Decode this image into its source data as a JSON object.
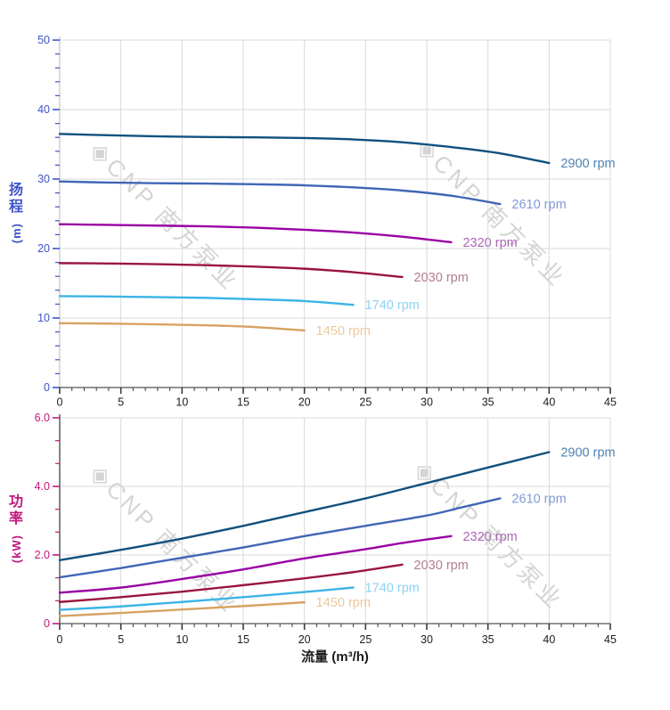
{
  "watermark": {
    "logo": "◈",
    "text": "CNP 南方泵业",
    "color": "#d4d4d4"
  },
  "x_axis_title": "流量 (m³/h)",
  "chart_data": [
    {
      "type": "line",
      "title": "",
      "ylabel": "扬程",
      "y_unit": "(m)",
      "xlabel": "流量 (m³/h)",
      "legend_position": "end-of-curve",
      "grid": true,
      "x_axis": {
        "min": 0,
        "max": 45,
        "major": 5,
        "minor_per_major": 5,
        "tick_labels": [
          "0",
          "5",
          "10",
          "15",
          "20",
          "25",
          "30",
          "35",
          "40",
          "45"
        ],
        "color": "#1b1b1b"
      },
      "y_axis": {
        "min": 0,
        "max": 50,
        "major": 10,
        "minor_per_major": 5,
        "tick_labels": [
          "0",
          "10",
          "20",
          "30",
          "40",
          "50"
        ],
        "color": "#3f53c9"
      },
      "series": [
        {
          "name": "2900 rpm",
          "color": "#10507d",
          "label_color": "#4e81b3",
          "points": [
            [
              0,
              36.5
            ],
            [
              4,
              36.3
            ],
            [
              8,
              36.15
            ],
            [
              12,
              36.05
            ],
            [
              16,
              36.0
            ],
            [
              20,
              35.9
            ],
            [
              24,
              35.7
            ],
            [
              28,
              35.3
            ],
            [
              32,
              34.6
            ],
            [
              36,
              33.7
            ],
            [
              40,
              32.3
            ]
          ]
        },
        {
          "name": "2610 rpm",
          "color": "#4166b5",
          "label_color": "#8099d6",
          "points": [
            [
              0,
              29.65
            ],
            [
              4,
              29.5
            ],
            [
              8,
              29.4
            ],
            [
              12,
              29.35
            ],
            [
              16,
              29.25
            ],
            [
              20,
              29.1
            ],
            [
              24,
              28.8
            ],
            [
              28,
              28.35
            ],
            [
              32,
              27.6
            ],
            [
              36,
              26.4
            ]
          ]
        },
        {
          "name": "2320 rpm",
          "color": "#9a00a5",
          "label_color": "#ab68b5",
          "points": [
            [
              0,
              23.5
            ],
            [
              4,
              23.4
            ],
            [
              8,
              23.3
            ],
            [
              12,
              23.2
            ],
            [
              16,
              23.0
            ],
            [
              20,
              22.7
            ],
            [
              24,
              22.3
            ],
            [
              28,
              21.7
            ],
            [
              32,
              20.9
            ]
          ]
        },
        {
          "name": "2030 rpm",
          "color": "#991441",
          "label_color": "#b27b93",
          "points": [
            [
              0,
              17.9
            ],
            [
              4,
              17.85
            ],
            [
              8,
              17.75
            ],
            [
              12,
              17.6
            ],
            [
              16,
              17.4
            ],
            [
              20,
              17.1
            ],
            [
              24,
              16.6
            ],
            [
              28,
              15.9
            ]
          ]
        },
        {
          "name": "1740 rpm",
          "color": "#3cb4e5",
          "label_color": "#8ed2f4",
          "points": [
            [
              0,
              13.15
            ],
            [
              4,
              13.1
            ],
            [
              8,
              13.0
            ],
            [
              12,
              12.9
            ],
            [
              16,
              12.7
            ],
            [
              20,
              12.45
            ],
            [
              24,
              11.9
            ]
          ]
        },
        {
          "name": "1450 rpm",
          "color": "#d7a262",
          "label_color": "#ebc89c",
          "points": [
            [
              0,
              9.25
            ],
            [
              4,
              9.2
            ],
            [
              8,
              9.1
            ],
            [
              12,
              8.95
            ],
            [
              16,
              8.7
            ],
            [
              20,
              8.2
            ]
          ]
        }
      ]
    },
    {
      "type": "line",
      "title": "",
      "ylabel": "功率",
      "y_unit": "(kW)",
      "xlabel": "流量 (m³/h)",
      "legend_position": "end-of-curve",
      "grid": true,
      "x_axis": {
        "min": 0,
        "max": 45,
        "major": 5,
        "minor_per_major": 5,
        "tick_labels": [
          "0",
          "5",
          "10",
          "15",
          "20",
          "25",
          "30",
          "35",
          "40",
          "45"
        ],
        "color": "#1b1b1b"
      },
      "y_axis": {
        "min": 0,
        "max": 6,
        "major": 2,
        "minor_per_major": 3,
        "tick_labels": [
          "0",
          "2.0",
          "4.0",
          "6.0"
        ],
        "color": "#c2187e"
      },
      "series": [
        {
          "name": "2900 rpm",
          "color": "#10507d",
          "label_color": "#4e81b3",
          "points": [
            [
              0,
              1.85
            ],
            [
              5,
              2.15
            ],
            [
              10,
              2.48
            ],
            [
              15,
              2.85
            ],
            [
              20,
              3.25
            ],
            [
              25,
              3.65
            ],
            [
              30,
              4.1
            ],
            [
              35,
              4.55
            ],
            [
              40,
              5.0
            ]
          ]
        },
        {
          "name": "2610 rpm",
          "color": "#4166b5",
          "label_color": "#8099d6",
          "points": [
            [
              0,
              1.35
            ],
            [
              5,
              1.62
            ],
            [
              10,
              1.92
            ],
            [
              15,
              2.22
            ],
            [
              20,
              2.55
            ],
            [
              25,
              2.85
            ],
            [
              30,
              3.15
            ],
            [
              33,
              3.4
            ],
            [
              36,
              3.65
            ]
          ]
        },
        {
          "name": "2320 rpm",
          "color": "#9a00a5",
          "label_color": "#ab68b5",
          "points": [
            [
              0,
              0.9
            ],
            [
              5,
              1.05
            ],
            [
              10,
              1.3
            ],
            [
              15,
              1.58
            ],
            [
              20,
              1.9
            ],
            [
              25,
              2.17
            ],
            [
              28,
              2.35
            ],
            [
              32,
              2.55
            ]
          ]
        },
        {
          "name": "2030 rpm",
          "color": "#991441",
          "label_color": "#b27b93",
          "points": [
            [
              0,
              0.63
            ],
            [
              5,
              0.77
            ],
            [
              10,
              0.93
            ],
            [
              15,
              1.12
            ],
            [
              20,
              1.32
            ],
            [
              24,
              1.5
            ],
            [
              28,
              1.72
            ]
          ]
        },
        {
          "name": "1740 rpm",
          "color": "#3cb4e5",
          "label_color": "#8ed2f4",
          "points": [
            [
              0,
              0.4
            ],
            [
              5,
              0.5
            ],
            [
              10,
              0.63
            ],
            [
              15,
              0.77
            ],
            [
              20,
              0.92
            ],
            [
              24,
              1.05
            ]
          ]
        },
        {
          "name": "1450 rpm",
          "color": "#d7a262",
          "label_color": "#ebc89c",
          "points": [
            [
              0,
              0.22
            ],
            [
              5,
              0.31
            ],
            [
              10,
              0.41
            ],
            [
              15,
              0.51
            ],
            [
              20,
              0.62
            ]
          ]
        }
      ]
    }
  ]
}
